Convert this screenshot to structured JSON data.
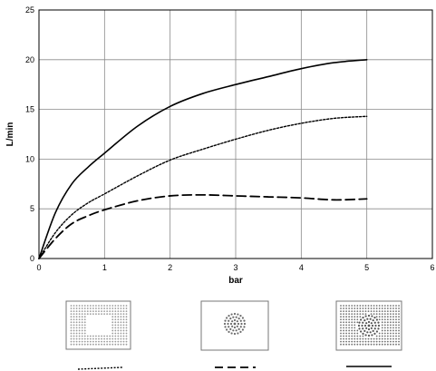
{
  "chart_data": {
    "type": "line",
    "title": "",
    "xlabel": "bar",
    "ylabel": "L/min",
    "xlim": [
      0,
      6
    ],
    "ylim": [
      0,
      25
    ],
    "xticks": [
      "0",
      "1",
      "2",
      "3",
      "4",
      "5",
      "6"
    ],
    "yticks": [
      "0",
      "5",
      "10",
      "15",
      "20",
      "25"
    ],
    "grid": true,
    "series": [
      {
        "style": "dotted",
        "legend_icon": "ring-perforation-pattern",
        "x": [
          0,
          0.25,
          0.5,
          0.75,
          1,
          1.5,
          2,
          2.5,
          3,
          3.5,
          4,
          4.5,
          5
        ],
        "y": [
          0,
          2.6,
          4.4,
          5.6,
          6.5,
          8.3,
          9.9,
          11.0,
          12.0,
          12.9,
          13.6,
          14.1,
          14.3
        ]
      },
      {
        "style": "dashed",
        "legend_icon": "center-perforation-pattern",
        "x": [
          0,
          0.25,
          0.5,
          0.75,
          1,
          1.5,
          2,
          2.5,
          3,
          3.5,
          4,
          4.5,
          5
        ],
        "y": [
          0,
          2.0,
          3.5,
          4.3,
          4.9,
          5.8,
          6.3,
          6.4,
          6.3,
          6.2,
          6.1,
          5.9,
          6.0
        ]
      },
      {
        "style": "solid",
        "legend_icon": "full-perforation-pattern",
        "x": [
          0,
          0.25,
          0.5,
          0.75,
          1,
          1.5,
          2,
          2.5,
          3,
          3.5,
          4,
          4.5,
          5
        ],
        "y": [
          0,
          4.6,
          7.5,
          9.2,
          10.6,
          13.3,
          15.3,
          16.6,
          17.5,
          18.3,
          19.1,
          19.7,
          20.0
        ]
      }
    ]
  }
}
